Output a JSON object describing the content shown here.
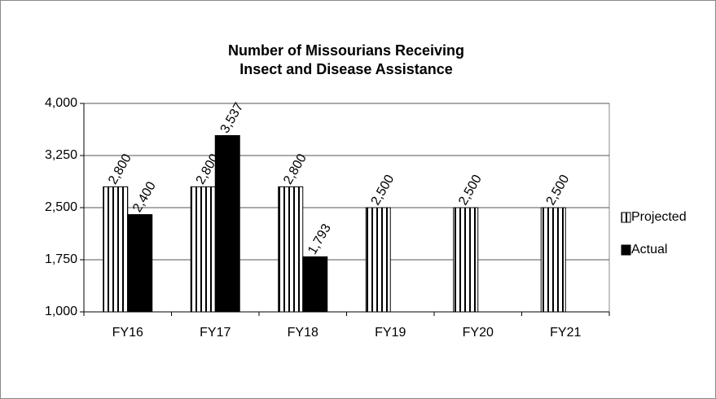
{
  "chart_data": {
    "type": "bar",
    "title": [
      "Number of  Missourians Receiving",
      "Insect and Disease Assistance"
    ],
    "categories": [
      "FY16",
      "FY17",
      "FY18",
      "FY19",
      "FY20",
      "FY21"
    ],
    "series": [
      {
        "name": "Projected",
        "color": "#000000",
        "pattern": "vertical-stripes",
        "values": [
          2800,
          2800,
          2800,
          2500,
          2500,
          2500
        ],
        "value_labels": [
          "2,800",
          "2,800",
          "2,800",
          "2,500",
          "2,500",
          "2,500"
        ]
      },
      {
        "name": "Actual",
        "color": "#000000",
        "values": [
          2400,
          3537,
          1793,
          null,
          null,
          null
        ],
        "value_labels": [
          "2,400",
          "3,537",
          "1,793",
          null,
          null,
          null
        ]
      }
    ],
    "ylim": [
      1000,
      4000
    ],
    "yticks": [
      {
        "value": 1000,
        "label": "1,000"
      },
      {
        "value": 1750,
        "label": "1,750"
      },
      {
        "value": 2500,
        "label": "2,500"
      },
      {
        "value": 3250,
        "label": "3,250"
      },
      {
        "value": 4000,
        "label": "4,000"
      }
    ],
    "grid": true,
    "legend": "right"
  }
}
